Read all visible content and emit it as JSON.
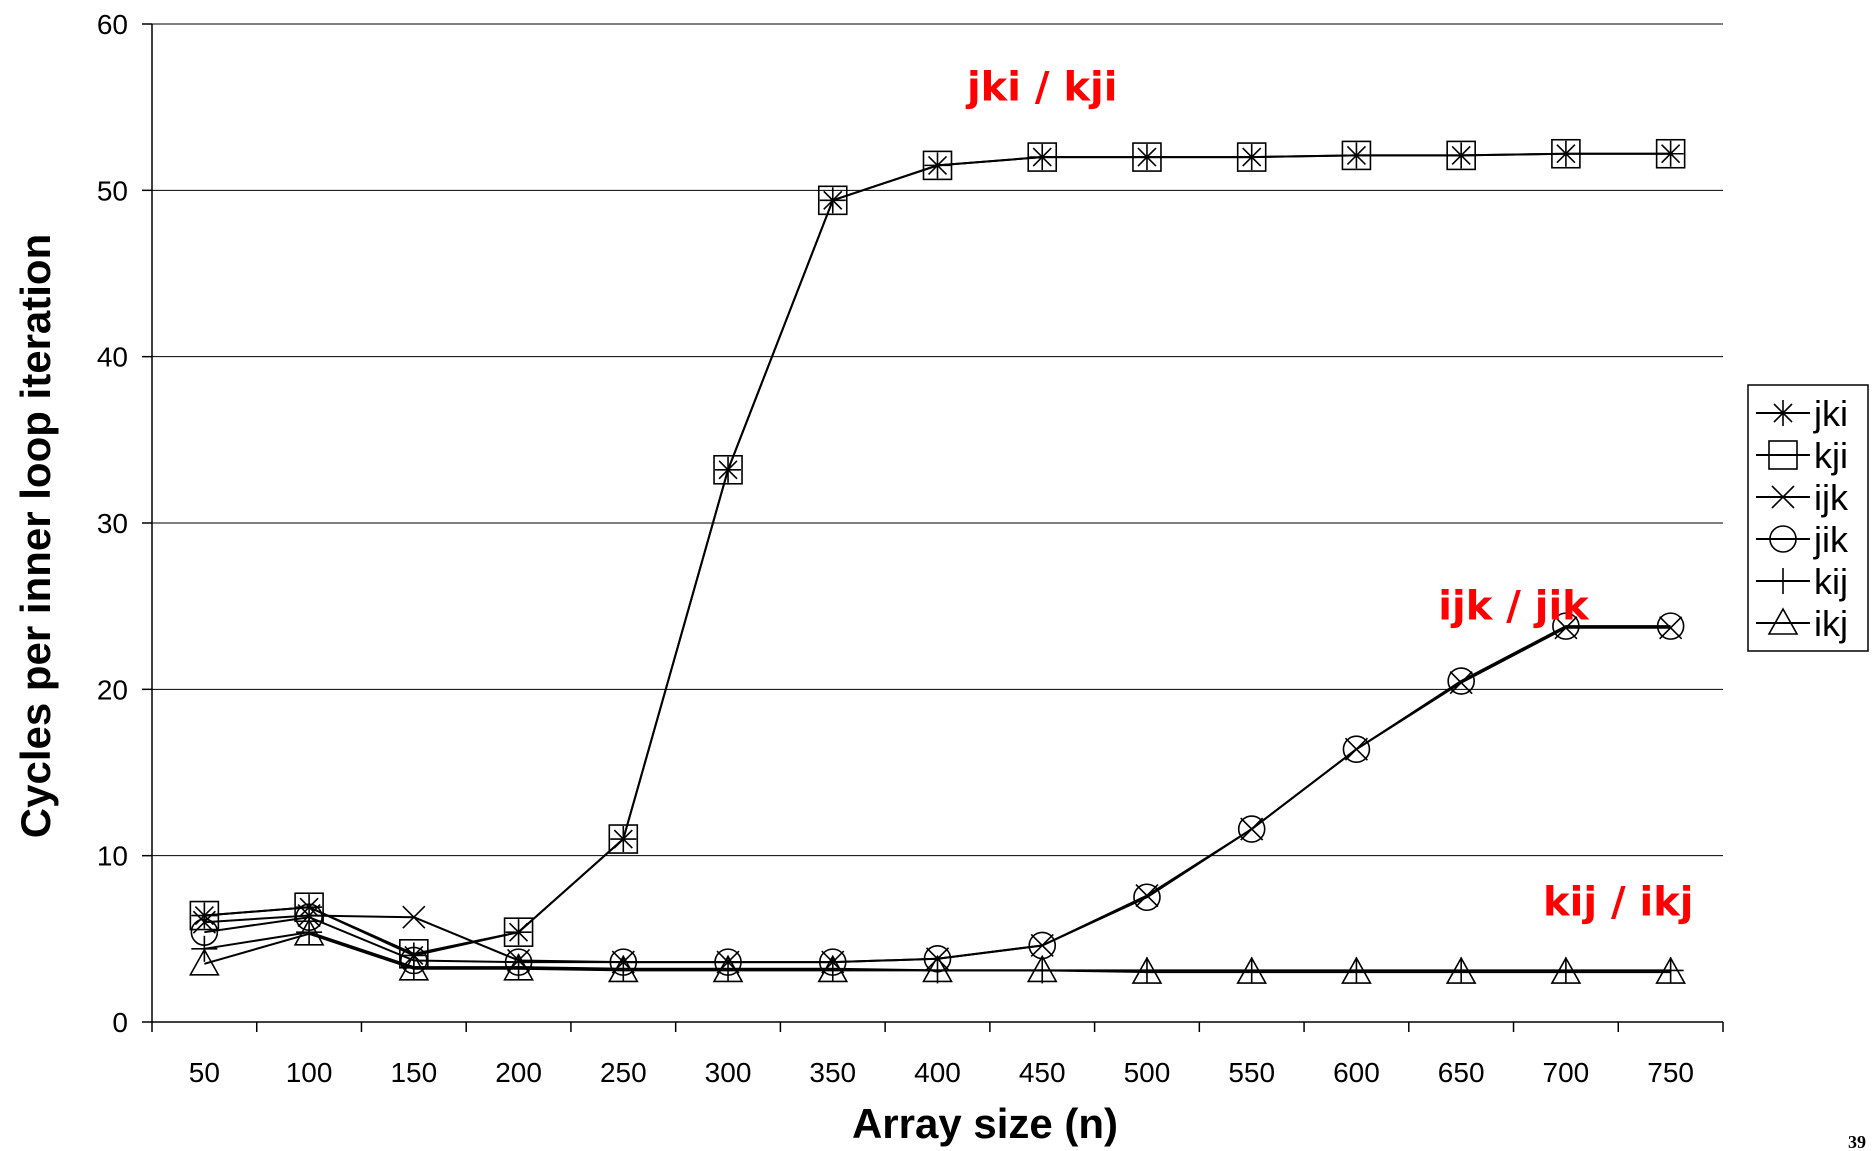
{
  "chart_data": {
    "type": "line",
    "title": "",
    "xlabel": "Array size (n)",
    "ylabel": "Cycles per inner loop iteration",
    "x": [
      50,
      100,
      150,
      200,
      250,
      300,
      350,
      400,
      450,
      500,
      550,
      600,
      650,
      700,
      750
    ],
    "ylim": [
      0,
      60
    ],
    "yticks": [
      0,
      10,
      20,
      30,
      40,
      50,
      60
    ],
    "grid": "horizontal",
    "legend_position": "right",
    "series": [
      {
        "name": "jki",
        "marker": "asterisk",
        "values": [
          6.4,
          6.9,
          4.0,
          5.4,
          11.0,
          33.2,
          49.4,
          51.5,
          52.0,
          52.0,
          52.0,
          52.1,
          52.1,
          52.2,
          52.2
        ]
      },
      {
        "name": "kji",
        "marker": "square",
        "values": [
          6.4,
          6.9,
          4.1,
          5.4,
          11.0,
          33.2,
          49.4,
          51.5,
          52.0,
          52.0,
          52.0,
          52.1,
          52.1,
          52.2,
          52.2
        ]
      },
      {
        "name": "ijk",
        "marker": "x",
        "values": [
          6.0,
          6.4,
          6.3,
          3.7,
          3.6,
          3.6,
          3.6,
          3.8,
          4.6,
          7.6,
          11.6,
          16.4,
          20.4,
          23.7,
          23.7
        ]
      },
      {
        "name": "jik",
        "marker": "circle",
        "values": [
          5.4,
          6.3,
          3.7,
          3.6,
          3.6,
          3.6,
          3.6,
          3.8,
          4.6,
          7.5,
          11.6,
          16.4,
          20.5,
          23.8,
          23.8
        ]
      },
      {
        "name": "kij",
        "marker": "plus",
        "values": [
          4.4,
          5.4,
          3.3,
          3.3,
          3.2,
          3.2,
          3.2,
          3.1,
          3.1,
          3.1,
          3.1,
          3.1,
          3.1,
          3.1,
          3.1
        ]
      },
      {
        "name": "ikj",
        "marker": "triangle",
        "values": [
          3.5,
          5.3,
          3.2,
          3.2,
          3.1,
          3.1,
          3.1,
          3.1,
          3.1,
          3.0,
          3.0,
          3.0,
          3.0,
          3.0,
          3.0
        ]
      }
    ],
    "annotations": [
      {
        "text": "jki / kji",
        "x": 450,
        "y": 55.4,
        "color": "#ff0000"
      },
      {
        "text": "ijk / jik",
        "x": 675,
        "y": 24.2,
        "color": "#ff0000"
      },
      {
        "text": "kij / ikj",
        "x": 725,
        "y": 6.4,
        "color": "#ff0000"
      }
    ]
  },
  "page_number": "39"
}
